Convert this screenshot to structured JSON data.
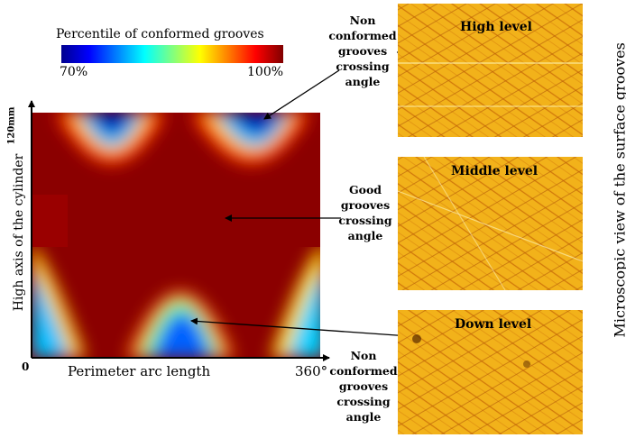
{
  "colorbar": {
    "title": "Percentile of conformed grooves",
    "min_label": "70%",
    "max_label": "100%",
    "stops": [
      "#00008f",
      "#0000ff",
      "#0080ff",
      "#00ffff",
      "#80ff80",
      "#ffff00",
      "#ff8000",
      "#ff0000",
      "#800000"
    ]
  },
  "map": {
    "y_top_label": "120mm",
    "y_axis_label": "High axis of the cylinder",
    "origin_label": "0",
    "x_axis_label": "Perimeter arc length",
    "x_end_label": "360°",
    "band_color": "#8b0000"
  },
  "callouts": {
    "top_nonconformed": "Non conformed grooves crossing angle",
    "middle_good": "Good grooves crossing angle",
    "bottom_nonconformed": "Non conformed grooves crossing angle"
  },
  "micrographs": {
    "side_label": "Microscopic view of the surface grooves",
    "items": [
      {
        "label": "High level"
      },
      {
        "label": "Middle level"
      },
      {
        "label": "Down level"
      }
    ]
  }
}
